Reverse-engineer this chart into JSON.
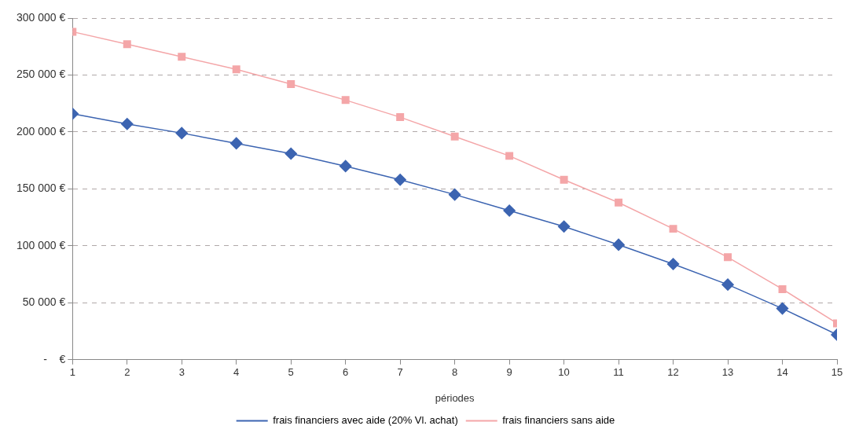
{
  "chart_data": {
    "type": "line",
    "xlabel": "périodes",
    "x": [
      1,
      2,
      3,
      4,
      5,
      6,
      7,
      8,
      9,
      10,
      11,
      12,
      13,
      14,
      15
    ],
    "xlim": [
      1,
      15
    ],
    "xticks": [
      1,
      2,
      3,
      4,
      5,
      6,
      7,
      8,
      9,
      10,
      11,
      12,
      13,
      14,
      15
    ],
    "ylim": [
      0,
      300000
    ],
    "yticks": [
      {
        "value": 0,
        "label": "-    €"
      },
      {
        "value": 50000,
        "label": "50 000 €"
      },
      {
        "value": 100000,
        "label": "100 000 €"
      },
      {
        "value": 150000,
        "label": "150 000 €"
      },
      {
        "value": 200000,
        "label": "200 000 €"
      },
      {
        "value": 250000,
        "label": "250 000 €"
      },
      {
        "value": 300000,
        "label": "300 000 €"
      }
    ],
    "grid": "y",
    "legend": "bottom",
    "line_style": "solid",
    "series": [
      {
        "name": "frais financiers avec aide (20% Vl. achat)",
        "color": "#3c64b1",
        "marker": "diamond",
        "values": [
          216000,
          207000,
          199000,
          190000,
          181000,
          170000,
          158000,
          145000,
          131000,
          117000,
          101000,
          84000,
          66000,
          45000,
          22000
        ]
      },
      {
        "name": "frais financiers sans aide",
        "color": "#f4a6a8",
        "marker": "square",
        "values": [
          288000,
          277000,
          266000,
          255000,
          242000,
          228000,
          213000,
          196000,
          179000,
          158000,
          138000,
          115000,
          90000,
          62000,
          32000
        ]
      }
    ]
  }
}
